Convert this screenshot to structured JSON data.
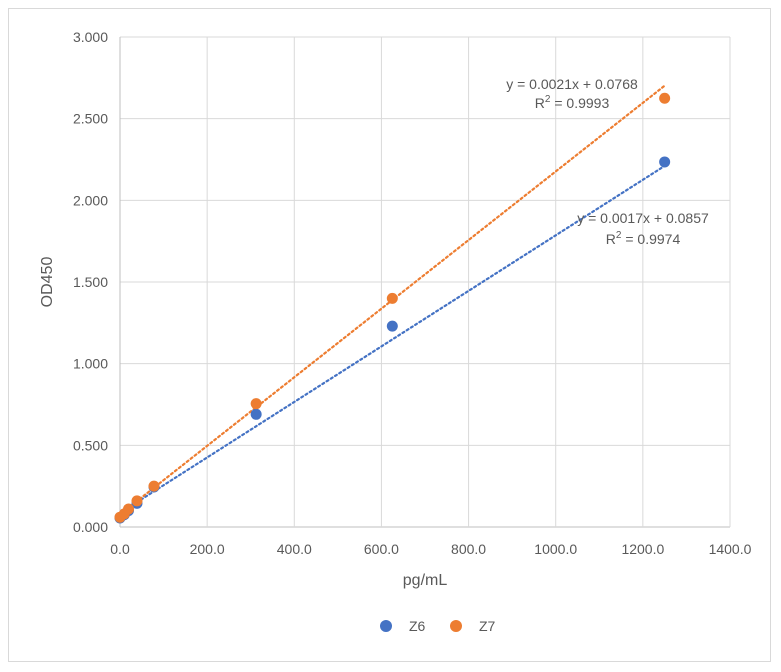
{
  "chart_data": {
    "type": "scatter",
    "title": "",
    "xlabel": "pg/mL",
    "ylabel": "OD450",
    "xlim": [
      0,
      1400
    ],
    "ylim": [
      0,
      3
    ],
    "x_ticks": [
      "0.0",
      "200.0",
      "400.0",
      "600.0",
      "800.0",
      "1000.0",
      "1200.0",
      "1400.0"
    ],
    "y_ticks": [
      "0.000",
      "0.500",
      "1.000",
      "1.500",
      "2.000",
      "2.500",
      "3.000"
    ],
    "grid": true,
    "legend_position": "bottom",
    "series": [
      {
        "name": "Z6",
        "color": "#4472c4",
        "x": [
          0,
          9.8,
          19.5,
          39,
          78,
          312.5,
          625,
          1250
        ],
        "y": [
          0.055,
          0.075,
          0.1,
          0.145,
          0.245,
          0.69,
          1.23,
          2.235
        ],
        "trendline": {
          "slope": 0.0017,
          "intercept": 0.0857,
          "equation": "y = 0.0017x + 0.0857",
          "r2_label": "R",
          "r2_sup": "2",
          "r2_value": " = 0.9974"
        }
      },
      {
        "name": "Z7",
        "color": "#ed7d31",
        "x": [
          0,
          9.8,
          19.5,
          39,
          78,
          312.5,
          625,
          1250
        ],
        "y": [
          0.06,
          0.08,
          0.11,
          0.16,
          0.25,
          0.755,
          1.4,
          2.625
        ],
        "trendline": {
          "slope": 0.0021,
          "intercept": 0.0768,
          "equation": "y = 0.0021x + 0.0768",
          "r2_label": "R",
          "r2_sup": "2",
          "r2_value": " = 0.9993"
        }
      }
    ]
  }
}
